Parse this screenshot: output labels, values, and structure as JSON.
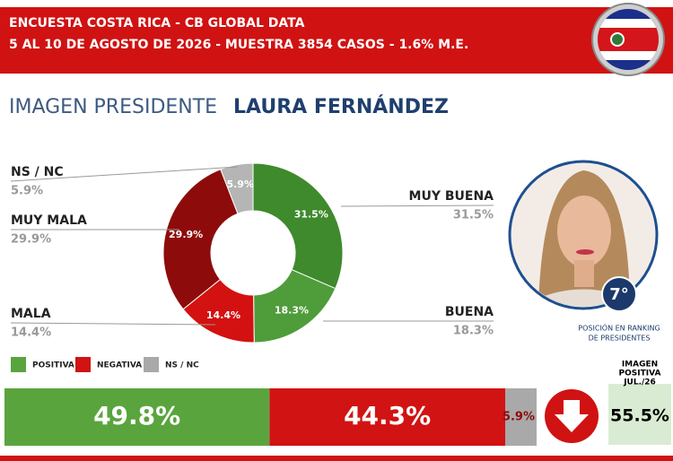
{
  "header": {
    "line1": "ENCUESTA COSTA RICA - CB GLOBAL DATA",
    "line2": "5 AL 10 DE AGOSTO DE 2026 - MUESTRA 3854 CASOS - 1.6% M.E."
  },
  "title": {
    "prefix": "IMAGEN PRESIDENTE",
    "name": "LAURA FERNÁNDEZ"
  },
  "chart_data": [
    {
      "type": "pie",
      "donut": true,
      "categories": [
        "MUY BUENA",
        "BUENA",
        "MALA",
        "MUY MALA",
        "NS / NC"
      ],
      "values": [
        31.5,
        18.3,
        14.4,
        29.9,
        5.9
      ],
      "value_labels": [
        "31.5%",
        "18.3%",
        "14.4%",
        "29.9%",
        "5.9%"
      ],
      "colors": [
        "#3f8a2d",
        "#4f9c3b",
        "#d41111",
        "#8e0b0b",
        "#b5b5b5"
      ]
    },
    {
      "type": "bar",
      "orientation": "horizontal",
      "stacked": true,
      "xlim": [
        0,
        100
      ],
      "series": [
        {
          "name": "POSITIVA",
          "color": "#5aa43e",
          "values": [
            49.8
          ],
          "value_labels": [
            "49.8%"
          ]
        },
        {
          "name": "NEGATIVA",
          "color": "#d11313",
          "values": [
            44.3
          ],
          "value_labels": [
            "44.3%"
          ]
        },
        {
          "name": "NS / NC",
          "color": "#a9a9a9",
          "values": [
            5.9
          ],
          "value_labels": [
            "5.9%"
          ]
        }
      ]
    }
  ],
  "comparison": {
    "label": [
      "IMAGEN",
      "POSITIVA",
      "JUL./26"
    ],
    "value": "55.5%"
  },
  "ranking": {
    "position": "7°",
    "caption": [
      "POSICIÓN EN RANKING",
      "DE PRESIDENTES"
    ]
  }
}
